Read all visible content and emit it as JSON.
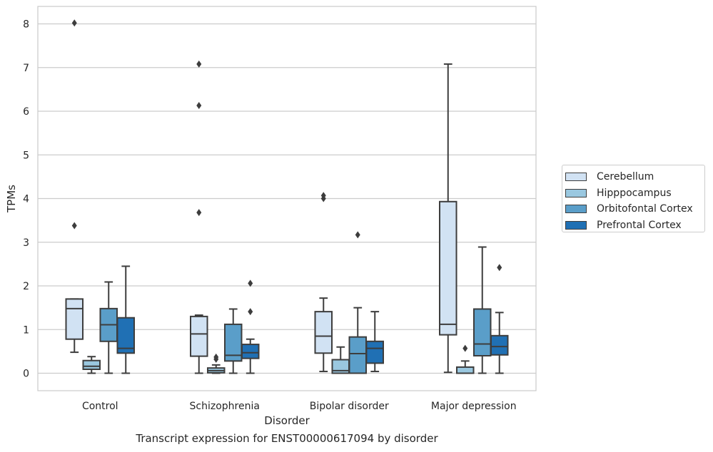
{
  "chart_data": {
    "type": "box",
    "title": "",
    "xlabel": "Disorder",
    "ylabel": "TPMs",
    "caption": "Transcript expression for ENST00000617094 by disorder",
    "ylim": [
      -0.4,
      8.4
    ],
    "yticks": [
      "0",
      "1",
      "2",
      "3",
      "4",
      "5",
      "6",
      "7",
      "8"
    ],
    "grid": "horizontal",
    "legend_position": "right",
    "categories": [
      "Control",
      "Schizophrenia",
      "Bipolar disorder",
      "Major depression"
    ],
    "series": [
      {
        "name": "Cerebellum",
        "color": "#d1e2f3",
        "boxes": [
          {
            "whislo": 0.48,
            "q1": 0.78,
            "med": 1.48,
            "q3": 1.7,
            "whishi": 1.7,
            "fliers": [
              3.38,
              8.02
            ]
          },
          {
            "whislo": 0.0,
            "q1": 0.39,
            "med": 0.9,
            "q3": 1.3,
            "whishi": 1.33,
            "fliers": [
              3.68,
              6.13,
              7.08
            ]
          },
          {
            "whislo": 0.04,
            "q1": 0.46,
            "med": 0.85,
            "q3": 1.41,
            "whishi": 1.72,
            "fliers": [
              4.0,
              4.07
            ]
          },
          {
            "whislo": 0.02,
            "q1": 0.88,
            "med": 1.12,
            "q3": 3.93,
            "whishi": 7.08,
            "fliers": []
          }
        ]
      },
      {
        "name": "Hipppocampus",
        "color": "#9ac8e0",
        "boxes": [
          {
            "whislo": 0.0,
            "q1": 0.09,
            "med": 0.16,
            "q3": 0.29,
            "whishi": 0.38,
            "fliers": []
          },
          {
            "whislo": 0.0,
            "q1": 0.01,
            "med": 0.06,
            "q3": 0.12,
            "whishi": 0.19,
            "fliers": [
              0.32,
              0.37
            ]
          },
          {
            "whislo": 0.0,
            "q1": 0.0,
            "med": 0.06,
            "q3": 0.31,
            "whishi": 0.6,
            "fliers": []
          },
          {
            "whislo": 0.0,
            "q1": 0.0,
            "med": 0.0,
            "q3": 0.14,
            "whishi": 0.28,
            "fliers": [
              0.57
            ]
          }
        ]
      },
      {
        "name": "Orbitofontal Cortex",
        "color": "#5a9ec9",
        "boxes": [
          {
            "whislo": 0.0,
            "q1": 0.73,
            "med": 1.11,
            "q3": 1.48,
            "whishi": 2.09,
            "fliers": []
          },
          {
            "whislo": 0.0,
            "q1": 0.28,
            "med": 0.41,
            "q3": 1.12,
            "whishi": 1.47,
            "fliers": []
          },
          {
            "whislo": 0.0,
            "q1": 0.0,
            "med": 0.45,
            "q3": 0.83,
            "whishi": 1.5,
            "fliers": [
              3.17
            ]
          },
          {
            "whislo": 0.0,
            "q1": 0.4,
            "med": 0.67,
            "q3": 1.47,
            "whishi": 2.89,
            "fliers": []
          }
        ]
      },
      {
        "name": "Prefrontal Cortex",
        "color": "#2070b4",
        "boxes": [
          {
            "whislo": 0.0,
            "q1": 0.46,
            "med": 0.57,
            "q3": 1.27,
            "whishi": 2.45,
            "fliers": []
          },
          {
            "whislo": 0.0,
            "q1": 0.34,
            "med": 0.47,
            "q3": 0.66,
            "whishi": 0.78,
            "fliers": [
              1.41,
              2.06
            ]
          },
          {
            "whislo": 0.04,
            "q1": 0.23,
            "med": 0.57,
            "q3": 0.73,
            "whishi": 1.41,
            "fliers": []
          },
          {
            "whislo": 0.0,
            "q1": 0.42,
            "med": 0.61,
            "q3": 0.86,
            "whishi": 1.39,
            "fliers": [
              2.42
            ]
          }
        ]
      }
    ]
  }
}
